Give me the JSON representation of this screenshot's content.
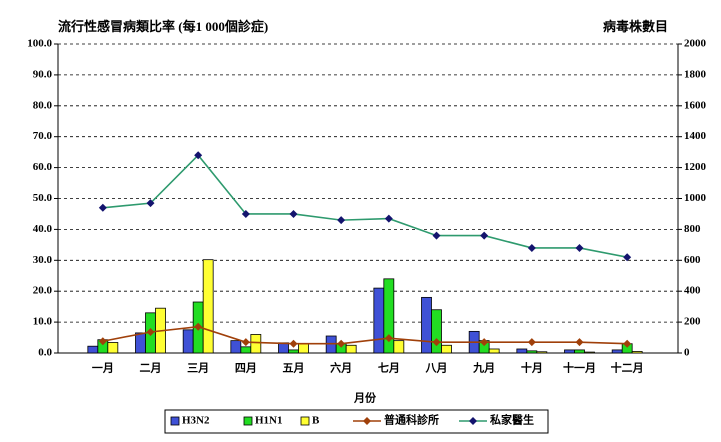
{
  "chart_data": {
    "type": "bar",
    "title": "流行性感冒病類比率 (每1 000個診症)",
    "y2_title": "病毒株數目",
    "x_title": "月份",
    "categories": [
      "一月",
      "二月",
      "三月",
      "四月",
      "五月",
      "六月",
      "七月",
      "八月",
      "九月",
      "十月",
      "十一月",
      "十二月"
    ],
    "ylim": [
      0,
      100
    ],
    "yticks": [
      {
        "value": 0,
        "label": "0.0"
      },
      {
        "value": 10,
        "label": "10.0"
      },
      {
        "value": 20,
        "label": "20.0"
      },
      {
        "value": 30,
        "label": "30.0"
      },
      {
        "value": 40,
        "label": "40.0"
      },
      {
        "value": 50,
        "label": "50.0"
      },
      {
        "value": 60,
        "label": "60.0"
      },
      {
        "value": 70,
        "label": "70.0"
      },
      {
        "value": 80,
        "label": "80.0"
      },
      {
        "value": 90,
        "label": "90.0"
      },
      {
        "value": 100,
        "label": "100.0"
      }
    ],
    "y2lim": [
      0,
      2000
    ],
    "y2ticks": [
      0,
      200,
      400,
      600,
      800,
      1000,
      1200,
      1400,
      1600,
      1800,
      2000
    ],
    "grid": true,
    "series": [
      {
        "name": "H3N2",
        "type": "bar",
        "axis": "y2",
        "color": "#3f51d6",
        "values": [
          44,
          130,
          150,
          80,
          66,
          110,
          420,
          360,
          140,
          26,
          20,
          20
        ]
      },
      {
        "name": "H1N1",
        "type": "bar",
        "axis": "y2",
        "color": "#22dd22",
        "values": [
          86,
          260,
          330,
          40,
          20,
          60,
          480,
          280,
          80,
          14,
          20,
          60
        ]
      },
      {
        "name": "B",
        "type": "bar",
        "axis": "y2",
        "color": "#ffff33",
        "values": [
          68,
          290,
          604,
          120,
          60,
          50,
          80,
          50,
          26,
          8,
          6,
          10
        ]
      },
      {
        "name": "普通科診所",
        "type": "line",
        "color": "#a0400a",
        "marker_color": "#a0400a",
        "values": [
          3.8,
          6.8,
          8.5,
          3.5,
          3,
          3,
          4.8,
          3.5,
          3.5,
          3.5,
          3.5,
          3
        ]
      },
      {
        "name": "私家醫生",
        "type": "line",
        "color": "#2e9a6e",
        "marker_color": "#14146e",
        "values": [
          47,
          48.5,
          64,
          45,
          45,
          43,
          43.5,
          38,
          38,
          34,
          34,
          31
        ]
      }
    ]
  }
}
